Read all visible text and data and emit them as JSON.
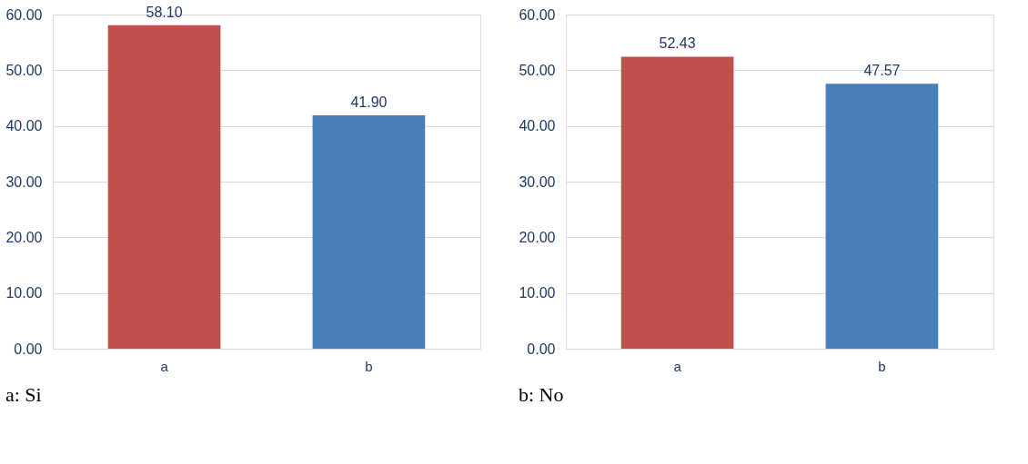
{
  "chart_data": [
    {
      "type": "bar",
      "categories": [
        "a",
        "b"
      ],
      "values": [
        58.1,
        41.9
      ],
      "colors": [
        "#c0504d",
        "#4a7ebb"
      ],
      "value_labels": [
        "58.10",
        "41.90"
      ],
      "ylim": [
        0,
        60
      ],
      "yticks": [
        {
          "value": 0,
          "label": "0.00"
        },
        {
          "value": 10,
          "label": "10.00"
        },
        {
          "value": 20,
          "label": "20.00"
        },
        {
          "value": 30,
          "label": "30.00"
        },
        {
          "value": 40,
          "label": "40.00"
        },
        {
          "value": 50,
          "label": "50.00"
        },
        {
          "value": 60,
          "label": "60.00"
        }
      ],
      "grid": "y",
      "annotations": [
        "a: Si"
      ]
    },
    {
      "type": "bar",
      "categories": [
        "a",
        "b"
      ],
      "values": [
        52.43,
        47.57
      ],
      "colors": [
        "#c0504d",
        "#4a7ebb"
      ],
      "value_labels": [
        "52.43",
        "47.57"
      ],
      "ylim": [
        0,
        60
      ],
      "yticks": [
        {
          "value": 0,
          "label": "0.00"
        },
        {
          "value": 10,
          "label": "10.00"
        },
        {
          "value": 20,
          "label": "20.00"
        },
        {
          "value": 30,
          "label": "30.00"
        },
        {
          "value": 40,
          "label": "40.00"
        },
        {
          "value": 50,
          "label": "50.00"
        },
        {
          "value": 60,
          "label": "60.00"
        }
      ],
      "grid": "y",
      "annotations": [
        "b: No"
      ]
    }
  ]
}
